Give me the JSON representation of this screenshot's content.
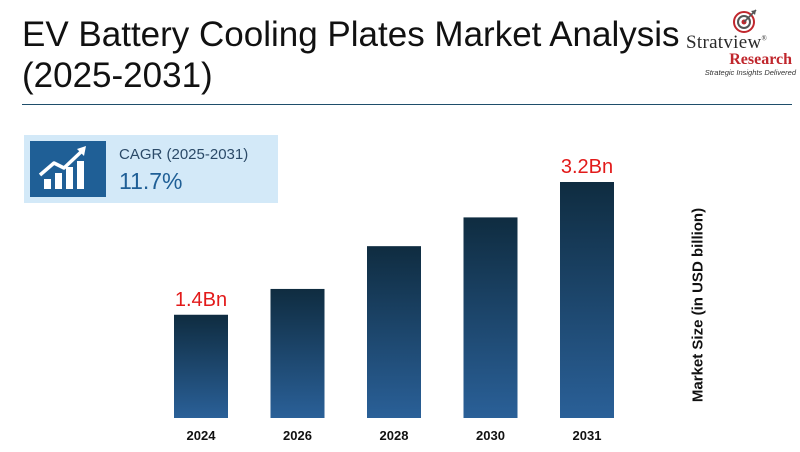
{
  "title": "EV Battery Cooling Plates Market Analysis (2025-2031)",
  "logo": {
    "name": "Stratview",
    "registered": "®",
    "sub": "Research",
    "tagline": "Strategic Insights Delivered"
  },
  "cagr": {
    "label": "CAGR (2025-2031)",
    "value": "11.7%",
    "icon": "growth-chart-icon"
  },
  "colors": {
    "bar_top": "#0f2c40",
    "bar_bottom": "#2a6098",
    "value_label": "#e21a1a",
    "accent": "#1f5f96"
  },
  "chart_data": {
    "type": "bar",
    "title": "",
    "xlabel": "",
    "ylabel": "Market Size (in USD billion)",
    "categories": [
      "2024",
      "2026",
      "2028",
      "2030",
      "2031"
    ],
    "values": [
      1.4,
      1.75,
      2.33,
      2.72,
      3.2
    ],
    "data_labels": [
      "1.4Bn",
      "",
      "",
      "",
      "3.2Bn"
    ],
    "ylim": [
      0,
      3.2
    ],
    "grid": false,
    "legend": "none"
  }
}
